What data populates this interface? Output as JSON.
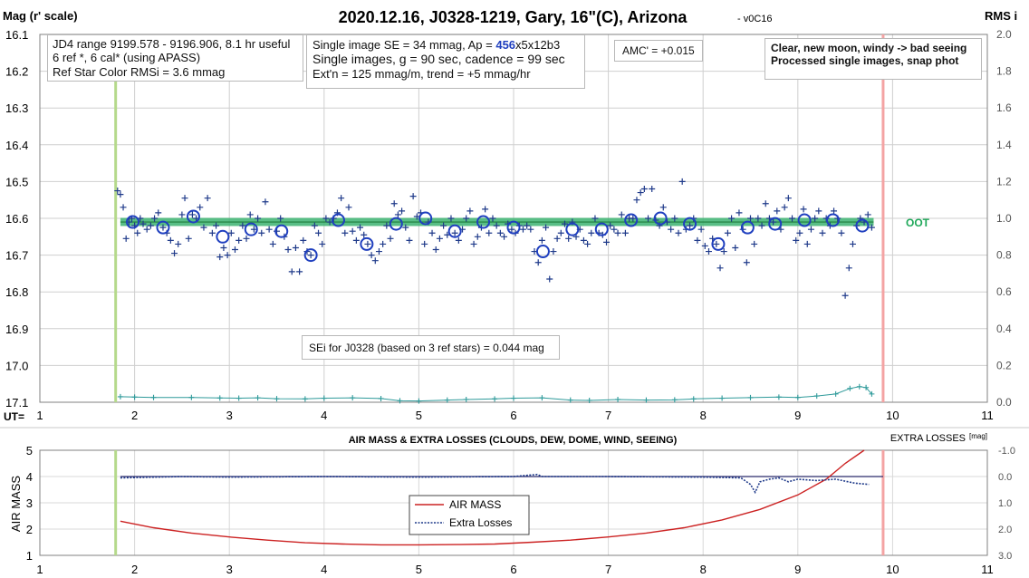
{
  "header": {
    "ylabel_left": "Mag (r' scale)",
    "title": "2020.12.16, J0328-1219, Gary, 16\"(C), Arizona",
    "version": "- v0C16",
    "ylabel_right": "RMS i",
    "ut_label": "UT="
  },
  "annotations": {
    "jd_box": [
      "JD4 range 9199.578 - 9196.906, 8.1 hr useful",
      " 6 ref *, 6 cal* (using APASS)",
      "Ref Star Color RMSi = 3.6 mmag"
    ],
    "se_line1_pre": "Single image SE = 34 mmag, Ap = ",
    "se_line1_ap": "456",
    "se_line1_post": "x5x12b3",
    "se_line2": "Single images, g = 90 sec, cadence = 99 sec",
    "se_line3": "Ext'n = 125 mmag/m, trend = +5 mmag/hr",
    "amc": "AMC' = +0.015",
    "conditions": [
      "Clear, new moon, windy -> bad seeing",
      "Processed single images, snap phot"
    ],
    "sei": "SEi for J0328 (based on 3 ref stars) = 0.044 mag",
    "oot": "OOT"
  },
  "colors": {
    "points": "#1f3a8a",
    "oot_band": "#3cb371",
    "rms": "#2e9a9a",
    "ingress": "#b5d98b",
    "egress": "#f4a3a3",
    "airmass": "#cc2222",
    "losses": "#1f3a8a",
    "grid": "#cfcfcf"
  },
  "chart_data": [
    {
      "type": "scatter",
      "title": "2020.12.16, J0328-1219, Gary, 16\"(C), Arizona",
      "xlabel": "UT=",
      "ylabel": "Mag (r' scale)",
      "y2label": "RMS i",
      "xlim": [
        1,
        11
      ],
      "ylim": [
        17.1,
        16.1
      ],
      "y2lim": [
        0.0,
        2.0
      ],
      "xticks": [
        1,
        2,
        3,
        4,
        5,
        6,
        7,
        8,
        9,
        10,
        11
      ],
      "yticks": [
        "16.1",
        "16.2",
        "16.3",
        "16.4",
        "16.5",
        "16.6",
        "16.7",
        "16.8",
        "16.9",
        "17.0",
        "17.1"
      ],
      "y2ticks": [
        "2.0",
        "1.8",
        "1.6",
        "1.4",
        "1.2",
        "1.0",
        "0.8",
        "0.6",
        "0.4",
        "0.2",
        "0.0"
      ],
      "grid": true,
      "ingress_ut": 1.8,
      "egress_ut": 9.9,
      "oot_level": 16.61,
      "oot_range": [
        1.85,
        9.8
      ],
      "single_images": [
        [
          1.82,
          16.525
        ],
        [
          1.85,
          16.535
        ],
        [
          1.88,
          16.57
        ],
        [
          1.91,
          16.655
        ],
        [
          1.94,
          16.61
        ],
        [
          1.97,
          16.6
        ],
        [
          2.0,
          16.62
        ],
        [
          2.03,
          16.64
        ],
        [
          2.06,
          16.6
        ],
        [
          2.09,
          16.615
        ],
        [
          2.13,
          16.63
        ],
        [
          2.17,
          16.62
        ],
        [
          2.21,
          16.6
        ],
        [
          2.25,
          16.585
        ],
        [
          2.3,
          16.625
        ],
        [
          2.34,
          16.64
        ],
        [
          2.38,
          16.66
        ],
        [
          2.42,
          16.695
        ],
        [
          2.46,
          16.67
        ],
        [
          2.5,
          16.59
        ],
        [
          2.53,
          16.545
        ],
        [
          2.57,
          16.655
        ],
        [
          2.61,
          16.59
        ],
        [
          2.65,
          16.6
        ],
        [
          2.69,
          16.57
        ],
        [
          2.73,
          16.625
        ],
        [
          2.77,
          16.545
        ],
        [
          2.82,
          16.64
        ],
        [
          2.86,
          16.62
        ],
        [
          2.9,
          16.705
        ],
        [
          2.94,
          16.68
        ],
        [
          2.98,
          16.7
        ],
        [
          3.02,
          16.64
        ],
        [
          3.06,
          16.685
        ],
        [
          3.1,
          16.66
        ],
        [
          3.14,
          16.62
        ],
        [
          3.18,
          16.655
        ],
        [
          3.22,
          16.59
        ],
        [
          3.26,
          16.63
        ],
        [
          3.3,
          16.6
        ],
        [
          3.34,
          16.64
        ],
        [
          3.38,
          16.555
        ],
        [
          3.42,
          16.63
        ],
        [
          3.46,
          16.67
        ],
        [
          3.5,
          16.635
        ],
        [
          3.54,
          16.6
        ],
        [
          3.58,
          16.65
        ],
        [
          3.62,
          16.685
        ],
        [
          3.66,
          16.745
        ],
        [
          3.7,
          16.68
        ],
        [
          3.74,
          16.745
        ],
        [
          3.78,
          16.66
        ],
        [
          3.82,
          16.69
        ],
        [
          3.86,
          16.7
        ],
        [
          3.9,
          16.62
        ],
        [
          3.94,
          16.64
        ],
        [
          3.98,
          16.67
        ],
        [
          4.02,
          16.6
        ],
        [
          4.06,
          16.61
        ],
        [
          4.1,
          16.6
        ],
        [
          4.14,
          16.585
        ],
        [
          4.18,
          16.545
        ],
        [
          4.22,
          16.64
        ],
        [
          4.26,
          16.57
        ],
        [
          4.3,
          16.635
        ],
        [
          4.34,
          16.66
        ],
        [
          4.38,
          16.625
        ],
        [
          4.42,
          16.645
        ],
        [
          4.46,
          16.67
        ],
        [
          4.5,
          16.7
        ],
        [
          4.54,
          16.715
        ],
        [
          4.58,
          16.69
        ],
        [
          4.62,
          16.67
        ],
        [
          4.66,
          16.62
        ],
        [
          4.7,
          16.655
        ],
        [
          4.74,
          16.56
        ],
        [
          4.78,
          16.59
        ],
        [
          4.82,
          16.58
        ],
        [
          4.86,
          16.625
        ],
        [
          4.9,
          16.66
        ],
        [
          4.94,
          16.54
        ],
        [
          4.98,
          16.595
        ],
        [
          5.02,
          16.585
        ],
        [
          5.06,
          16.67
        ],
        [
          5.1,
          16.61
        ],
        [
          5.14,
          16.64
        ],
        [
          5.18,
          16.685
        ],
        [
          5.22,
          16.655
        ],
        [
          5.26,
          16.62
        ],
        [
          5.3,
          16.645
        ],
        [
          5.34,
          16.6
        ],
        [
          5.38,
          16.64
        ],
        [
          5.42,
          16.66
        ],
        [
          5.46,
          16.63
        ],
        [
          5.5,
          16.6
        ],
        [
          5.54,
          16.58
        ],
        [
          5.58,
          16.67
        ],
        [
          5.62,
          16.65
        ],
        [
          5.66,
          16.625
        ],
        [
          5.7,
          16.575
        ],
        [
          5.74,
          16.64
        ],
        [
          5.78,
          16.6
        ],
        [
          5.82,
          16.62
        ],
        [
          5.86,
          16.64
        ],
        [
          5.9,
          16.65
        ],
        [
          5.94,
          16.615
        ],
        [
          5.98,
          16.63
        ],
        [
          6.02,
          16.64
        ],
        [
          6.06,
          16.62
        ],
        [
          6.1,
          16.63
        ],
        [
          6.14,
          16.62
        ],
        [
          6.18,
          16.63
        ],
        [
          6.22,
          16.69
        ],
        [
          6.26,
          16.72
        ],
        [
          6.3,
          16.66
        ],
        [
          6.34,
          16.625
        ],
        [
          6.38,
          16.765
        ],
        [
          6.42,
          16.69
        ],
        [
          6.46,
          16.655
        ],
        [
          6.5,
          16.64
        ],
        [
          6.54,
          16.615
        ],
        [
          6.58,
          16.655
        ],
        [
          6.62,
          16.61
        ],
        [
          6.66,
          16.65
        ],
        [
          6.7,
          16.63
        ],
        [
          6.74,
          16.66
        ],
        [
          6.78,
          16.67
        ],
        [
          6.82,
          16.64
        ],
        [
          6.86,
          16.6
        ],
        [
          6.9,
          16.64
        ],
        [
          6.94,
          16.645
        ],
        [
          6.98,
          16.665
        ],
        [
          7.02,
          16.62
        ],
        [
          7.06,
          16.63
        ],
        [
          7.1,
          16.64
        ],
        [
          7.14,
          16.59
        ],
        [
          7.18,
          16.64
        ],
        [
          7.22,
          16.6
        ],
        [
          7.26,
          16.6
        ],
        [
          7.3,
          16.55
        ],
        [
          7.34,
          16.53
        ],
        [
          7.38,
          16.52
        ],
        [
          7.42,
          16.6
        ],
        [
          7.46,
          16.52
        ],
        [
          7.5,
          16.605
        ],
        [
          7.54,
          16.62
        ],
        [
          7.58,
          16.57
        ],
        [
          7.62,
          16.61
        ],
        [
          7.66,
          16.63
        ],
        [
          7.7,
          16.6
        ],
        [
          7.74,
          16.64
        ],
        [
          7.78,
          16.5
        ],
        [
          7.82,
          16.63
        ],
        [
          7.86,
          16.62
        ],
        [
          7.9,
          16.6
        ],
        [
          7.94,
          16.66
        ],
        [
          7.98,
          16.63
        ],
        [
          8.02,
          16.675
        ],
        [
          8.06,
          16.69
        ],
        [
          8.1,
          16.655
        ],
        [
          8.14,
          16.67
        ],
        [
          8.18,
          16.735
        ],
        [
          8.22,
          16.69
        ],
        [
          8.26,
          16.64
        ],
        [
          8.3,
          16.6
        ],
        [
          8.34,
          16.68
        ],
        [
          8.38,
          16.585
        ],
        [
          8.42,
          16.63
        ],
        [
          8.46,
          16.72
        ],
        [
          8.5,
          16.6
        ],
        [
          8.54,
          16.67
        ],
        [
          8.58,
          16.6
        ],
        [
          8.62,
          16.62
        ],
        [
          8.66,
          16.56
        ],
        [
          8.7,
          16.6
        ],
        [
          8.74,
          16.61
        ],
        [
          8.78,
          16.58
        ],
        [
          8.82,
          16.63
        ],
        [
          8.86,
          16.57
        ],
        [
          8.9,
          16.545
        ],
        [
          8.94,
          16.6
        ],
        [
          8.98,
          16.66
        ],
        [
          9.02,
          16.64
        ],
        [
          9.06,
          16.575
        ],
        [
          9.1,
          16.67
        ],
        [
          9.14,
          16.63
        ],
        [
          9.18,
          16.6
        ],
        [
          9.22,
          16.58
        ],
        [
          9.26,
          16.64
        ],
        [
          9.3,
          16.6
        ],
        [
          9.34,
          16.62
        ],
        [
          9.38,
          16.58
        ],
        [
          9.42,
          16.6
        ],
        [
          9.46,
          16.64
        ],
        [
          9.5,
          16.81
        ],
        [
          9.54,
          16.735
        ],
        [
          9.58,
          16.67
        ],
        [
          9.62,
          16.62
        ],
        [
          9.66,
          16.6
        ],
        [
          9.7,
          16.61
        ],
        [
          9.74,
          16.59
        ],
        [
          9.78,
          16.625
        ]
      ],
      "averages": [
        [
          1.98,
          16.61
        ],
        [
          2.3,
          16.625
        ],
        [
          2.62,
          16.595
        ],
        [
          2.93,
          16.65
        ],
        [
          3.23,
          16.63
        ],
        [
          3.55,
          16.635
        ],
        [
          3.86,
          16.7
        ],
        [
          4.15,
          16.605
        ],
        [
          4.45,
          16.67
        ],
        [
          4.76,
          16.615
        ],
        [
          5.07,
          16.6
        ],
        [
          5.38,
          16.635
        ],
        [
          5.68,
          16.61
        ],
        [
          6.0,
          16.625
        ],
        [
          6.31,
          16.69
        ],
        [
          6.62,
          16.63
        ],
        [
          6.93,
          16.63
        ],
        [
          7.24,
          16.605
        ],
        [
          7.55,
          16.6
        ],
        [
          7.86,
          16.615
        ],
        [
          8.16,
          16.67
        ],
        [
          8.47,
          16.625
        ],
        [
          8.76,
          16.615
        ],
        [
          9.07,
          16.605
        ],
        [
          9.37,
          16.605
        ],
        [
          9.68,
          16.62
        ]
      ],
      "rms_series": [
        [
          1.85,
          0.03
        ],
        [
          2.0,
          0.028
        ],
        [
          2.2,
          0.026
        ],
        [
          2.6,
          0.026
        ],
        [
          2.9,
          0.023
        ],
        [
          3.1,
          0.022
        ],
        [
          3.3,
          0.024
        ],
        [
          3.5,
          0.019
        ],
        [
          3.8,
          0.018
        ],
        [
          4.0,
          0.022
        ],
        [
          4.3,
          0.024
        ],
        [
          4.6,
          0.02
        ],
        [
          4.8,
          0.008
        ],
        [
          5.0,
          0.007
        ],
        [
          5.3,
          0.012
        ],
        [
          5.5,
          0.015
        ],
        [
          5.8,
          0.018
        ],
        [
          6.0,
          0.022
        ],
        [
          6.3,
          0.024
        ],
        [
          6.6,
          0.012
        ],
        [
          6.8,
          0.01
        ],
        [
          7.1,
          0.015
        ],
        [
          7.4,
          0.012
        ],
        [
          7.7,
          0.013
        ],
        [
          7.9,
          0.018
        ],
        [
          8.2,
          0.022
        ],
        [
          8.5,
          0.025
        ],
        [
          8.8,
          0.028
        ],
        [
          9.0,
          0.026
        ],
        [
          9.2,
          0.034
        ],
        [
          9.4,
          0.045
        ],
        [
          9.55,
          0.075
        ],
        [
          9.65,
          0.085
        ],
        [
          9.72,
          0.08
        ],
        [
          9.78,
          0.045
        ]
      ]
    },
    {
      "type": "line",
      "title": "AIR MASS & EXTRA LOSSES (CLOUDS, DEW, DOME, WIND, SEEING)",
      "ylabel": "AIR MASS",
      "y2label": "EXTRA LOSSES",
      "y2unit": "[mag]",
      "xlim": [
        1,
        11
      ],
      "ylim": [
        1,
        5
      ],
      "y2lim": [
        3.0,
        -1.0
      ],
      "xticks": [
        1,
        2,
        3,
        4,
        5,
        6,
        7,
        8,
        9,
        10,
        11
      ],
      "yticks": [
        "5",
        "4",
        "3",
        "2",
        "1"
      ],
      "y2ticks": [
        "-1.0",
        "0.0",
        "1.0",
        "2.0",
        "3.0"
      ],
      "ingress_ut": 1.8,
      "egress_ut": 9.9,
      "legend": {
        "position": "center-left",
        "entries": [
          "AIR MASS",
          "Extra Losses"
        ]
      },
      "series": [
        {
          "name": "AIR MASS",
          "x": [
            1.85,
            2.2,
            2.6,
            3.0,
            3.4,
            3.8,
            4.2,
            4.6,
            5.0,
            5.4,
            5.8,
            6.2,
            6.6,
            7.0,
            7.4,
            7.8,
            8.2,
            8.6,
            9.0,
            9.3,
            9.5,
            9.7
          ],
          "values": [
            2.3,
            2.05,
            1.85,
            1.7,
            1.58,
            1.48,
            1.43,
            1.4,
            1.4,
            1.41,
            1.43,
            1.5,
            1.58,
            1.7,
            1.85,
            2.05,
            2.35,
            2.75,
            3.3,
            3.9,
            4.5,
            5.0
          ]
        },
        {
          "name": "Extra Losses",
          "x": [
            1.85,
            2.5,
            3.0,
            4.0,
            5.0,
            6.0,
            6.25,
            6.3,
            7.0,
            8.0,
            8.4,
            8.5,
            8.55,
            8.6,
            8.7,
            8.8,
            8.9,
            9.0,
            9.2,
            9.4,
            9.6,
            9.75
          ],
          "values": [
            0.05,
            0.0,
            0.02,
            0.0,
            0.02,
            0.0,
            -0.08,
            0.0,
            0.0,
            0.02,
            0.05,
            0.3,
            0.6,
            0.2,
            0.1,
            0.05,
            0.2,
            0.1,
            0.15,
            0.1,
            0.25,
            0.3
          ]
        }
      ]
    }
  ]
}
